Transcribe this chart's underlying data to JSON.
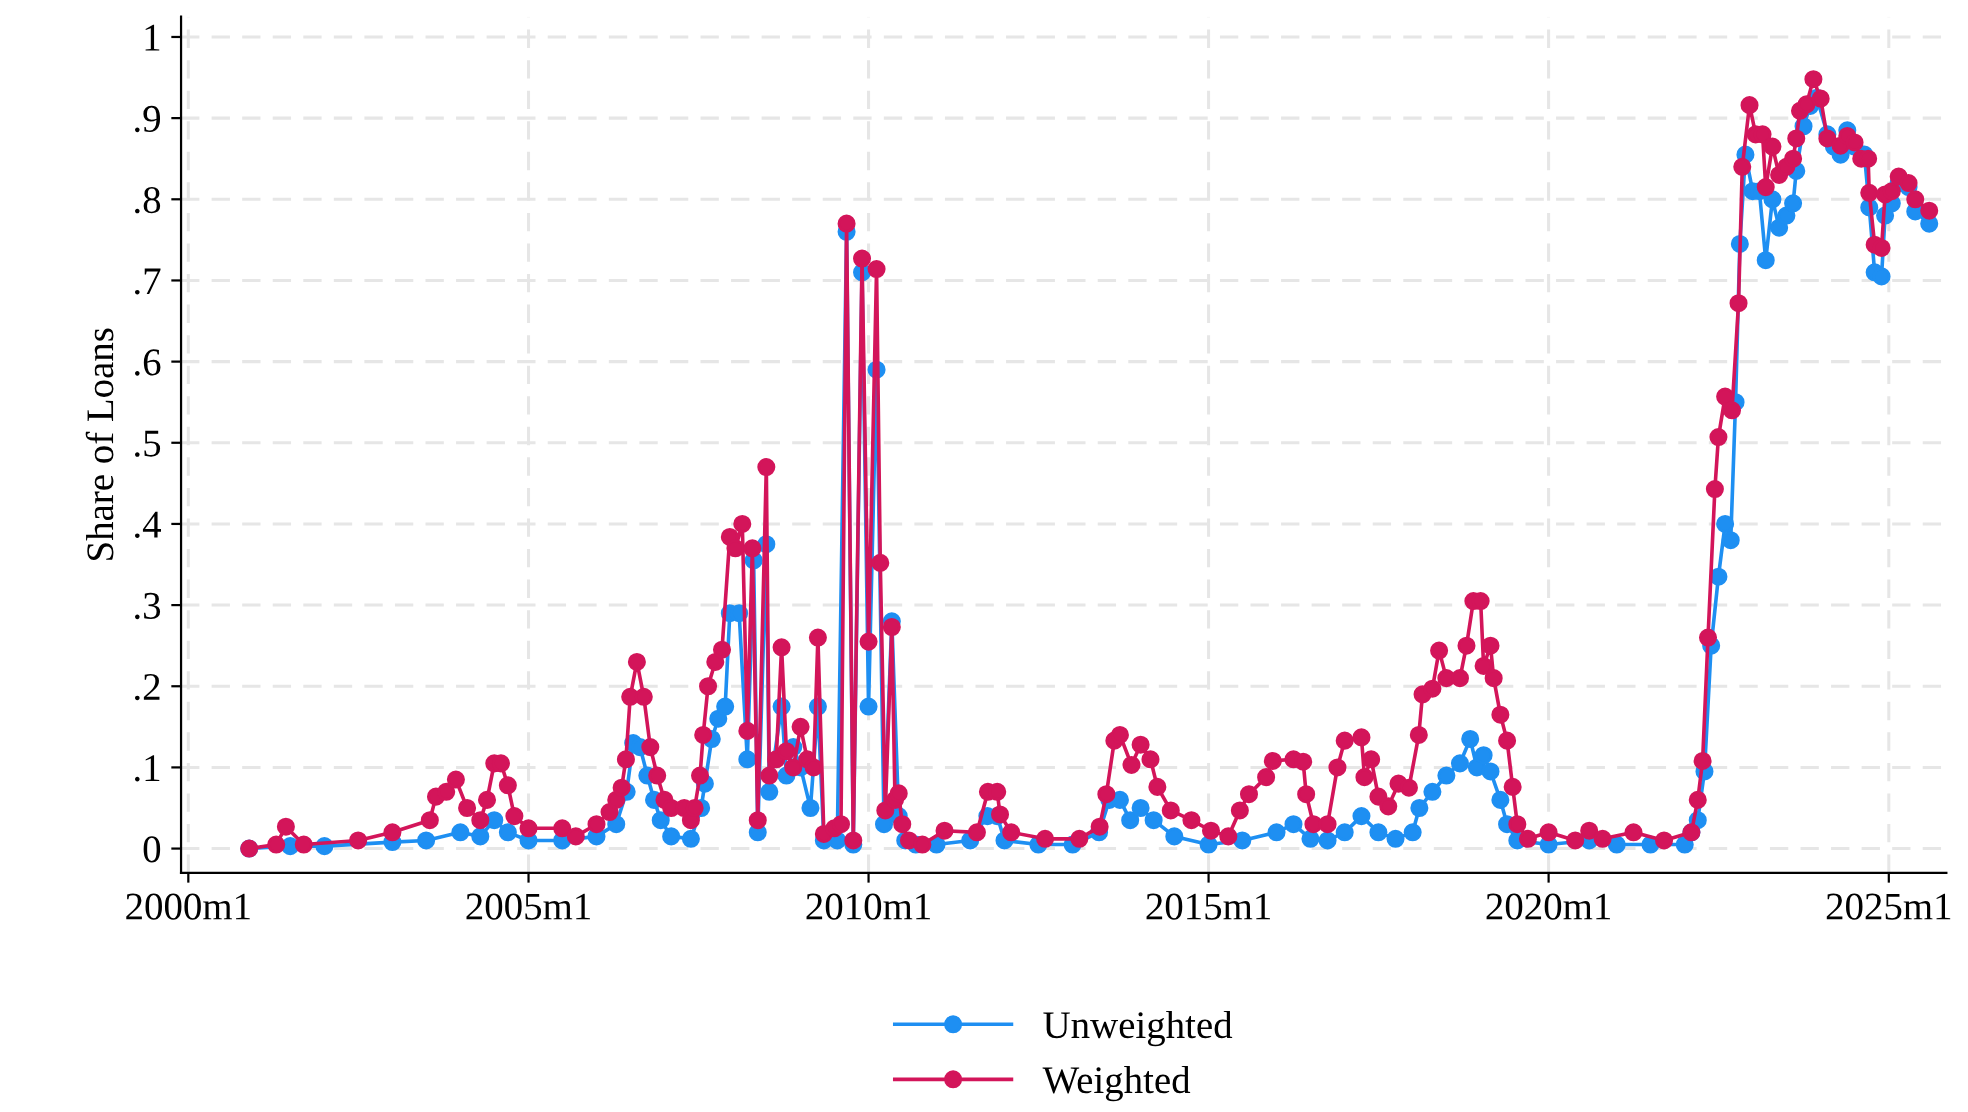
{
  "chart_data": {
    "type": "line",
    "ylabel": "Share of Loans",
    "xlim": [
      "1999-11-23",
      "2025-11-06"
    ],
    "ylim": [
      -0.03,
      1.025
    ],
    "xticks": [
      {
        "value": "2000-01",
        "label": "2000m1"
      },
      {
        "value": "2005-01",
        "label": "2005m1"
      },
      {
        "value": "2010-01",
        "label": "2010m1"
      },
      {
        "value": "2015-01",
        "label": "2015m1"
      },
      {
        "value": "2020-01",
        "label": "2020m1"
      },
      {
        "value": "2025-01",
        "label": "2025m1"
      }
    ],
    "yticks": [
      0,
      {
        "value": 0.1,
        "label": ".1"
      },
      {
        "value": 0.2,
        "label": ".2"
      },
      {
        "value": 0.3,
        "label": ".3"
      },
      {
        "value": 0.4,
        "label": ".4"
      },
      {
        "value": 0.5,
        "label": ".5"
      },
      {
        "value": 0.6,
        "label": ".6"
      },
      {
        "value": 0.7,
        "label": ".7"
      },
      {
        "value": 0.8,
        "label": ".8"
      },
      {
        "value": 0.9,
        "label": ".9"
      },
      1
    ],
    "grid": true,
    "legend": "bottom",
    "marker": "circle",
    "line_style": "solid",
    "series": [
      {
        "name": "Unweighted",
        "color": "#1e8ff2",
        "x": [
          "2000-11-23",
          "2001-07-01",
          "2002-01-01",
          "2003-01-01",
          "2003-07-01",
          "2004-01-01",
          "2004-04-17",
          "2004-07-01",
          "2004-09-12",
          "2005-01-01",
          "2005-07-01",
          "2006-01-01",
          "2006-04-17",
          "2006-06-12",
          "2006-07-17",
          "2006-08-23",
          "2006-10-01",
          "2006-11-06",
          "2006-12-12",
          "2007-02-06",
          "2007-05-23",
          "2007-07-17",
          "2007-08-06",
          "2007-09-12",
          "2007-10-17",
          "2007-11-23",
          "2007-12-18",
          "2008-02-06",
          "2008-03-21",
          "2008-04-24",
          "2008-05-16",
          "2008-07-01",
          "2008-07-17",
          "2008-09-21",
          "2008-10-17",
          "2008-11-23",
          "2009-01-01",
          "2009-02-23",
          "2009-04-04",
          "2009-05-06",
          "2009-07-17",
          "2009-09-05",
          "2009-10-11",
          "2009-11-27",
          "2010-01-01",
          "2010-02-13",
          "2010-03-25",
          "2010-05-06",
          "2010-06-12",
          "2010-07-17",
          "2010-09-12",
          "2011-01-01",
          "2011-07-01",
          "2011-10-01",
          "2011-11-23",
          "2012-01-01",
          "2012-07-01",
          "2013-01-01",
          "2013-05-23",
          "2013-07-17",
          "2013-09-12",
          "2013-11-06",
          "2014-01-01",
          "2014-03-12",
          "2014-07-01",
          "2015-01-01",
          "2015-07-01",
          "2016-01-01",
          "2016-04-01",
          "2016-07-01",
          "2016-10-01",
          "2017-01-01",
          "2017-04-01",
          "2017-07-01",
          "2017-10-01",
          "2018-01-01",
          "2018-02-06",
          "2018-04-17",
          "2018-07-01",
          "2018-09-12",
          "2018-11-06",
          "2018-12-12",
          "2019-01-17",
          "2019-02-23",
          "2019-04-17",
          "2019-05-23",
          "2019-07-17",
          "2020-01-01",
          "2020-08-06",
          "2021-01-01",
          "2021-07-01",
          "2022-01-01",
          "2022-02-06",
          "2022-03-12",
          "2022-04-17",
          "2022-05-23",
          "2022-07-01",
          "2022-08-06",
          "2022-09-05",
          "2022-10-01",
          "2022-10-24",
          "2022-11-23",
          "2023-01-01",
          "2023-02-06",
          "2023-03-12",
          "2023-04-17",
          "2023-05-23",
          "2023-07-01",
          "2023-08-06",
          "2023-08-23",
          "2023-10-01",
          "2023-11-06",
          "2023-12-12",
          "2024-02-06",
          "2024-03-12",
          "2024-04-17",
          "2024-05-23",
          "2024-07-01",
          "2024-08-23",
          "2024-09-18",
          "2024-10-17",
          "2024-11-23",
          "2024-12-12",
          "2025-01-17",
          "2025-02-23",
          "2025-04-17",
          "2025-05-23",
          "2025-08-06"
        ],
        "values": [
          0.0,
          0.003,
          0.003,
          0.008,
          0.01,
          0.02,
          0.015,
          0.035,
          0.02,
          0.01,
          0.01,
          0.015,
          0.03,
          0.07,
          0.13,
          0.125,
          0.09,
          0.06,
          0.035,
          0.015,
          0.012,
          0.05,
          0.08,
          0.135,
          0.16,
          0.175,
          0.29,
          0.29,
          0.11,
          0.355,
          0.02,
          0.375,
          0.07,
          0.175,
          0.09,
          0.125,
          0.1,
          0.05,
          0.175,
          0.01,
          0.01,
          0.76,
          0.005,
          0.71,
          0.175,
          0.59,
          0.03,
          0.28,
          0.04,
          0.01,
          0.005,
          0.005,
          0.01,
          0.04,
          0.04,
          0.01,
          0.005,
          0.005,
          0.02,
          0.06,
          0.06,
          0.035,
          0.05,
          0.035,
          0.015,
          0.005,
          0.01,
          0.02,
          0.03,
          0.012,
          0.01,
          0.02,
          0.04,
          0.02,
          0.012,
          0.02,
          0.05,
          0.07,
          0.09,
          0.105,
          0.135,
          0.1,
          0.115,
          0.095,
          0.06,
          0.03,
          0.01,
          0.005,
          0.01,
          0.005,
          0.005,
          0.005,
          0.02,
          0.035,
          0.095,
          0.25,
          0.335,
          0.4,
          0.38,
          0.55,
          0.745,
          0.855,
          0.81,
          0.81,
          0.725,
          0.8,
          0.765,
          0.78,
          0.795,
          0.835,
          0.89,
          0.915,
          0.925,
          0.88,
          0.865,
          0.855,
          0.885,
          0.865,
          0.855,
          0.79,
          0.71,
          0.705,
          0.78,
          0.795,
          0.82,
          0.815,
          0.785,
          0.77
        ]
      },
      {
        "name": "Weighted",
        "color": "#d3155a",
        "x": [
          "2000-11-23",
          "2001-04-17",
          "2001-06-08",
          "2001-09-12",
          "2002-07-01",
          "2003-01-01",
          "2003-07-21",
          "2003-08-23",
          "2003-10-17",
          "2003-12-08",
          "2004-02-06",
          "2004-04-17",
          "2004-05-23",
          "2004-07-01",
          "2004-08-06",
          "2004-09-12",
          "2004-10-17",
          "2005-01-01",
          "2005-07-01",
          "2005-09-12",
          "2006-01-01",
          "2006-03-12",
          "2006-04-17",
          "2006-05-16",
          "2006-06-08",
          "2006-07-01",
          "2006-08-06",
          "2006-09-12",
          "2006-10-17",
          "2006-11-23",
          "2007-01-01",
          "2007-02-06",
          "2007-04-17",
          "2007-05-23",
          "2007-06-12",
          "2007-07-11",
          "2007-07-28",
          "2007-08-23",
          "2007-10-01",
          "2007-11-06",
          "2007-12-18",
          "2008-01-17",
          "2008-02-23",
          "2008-03-21",
          "2008-04-17",
          "2008-05-16",
          "2008-07-01",
          "2008-07-17",
          "2008-08-23",
          "2008-09-21",
          "2008-10-17",
          "2008-11-23",
          "2009-01-01",
          "2009-02-06",
          "2009-03-12",
          "2009-04-04",
          "2009-05-06",
          "2009-07-01",
          "2009-08-06",
          "2009-09-05",
          "2009-10-11",
          "2009-11-27",
          "2010-01-01",
          "2010-02-13",
          "2010-03-05",
          "2010-04-01",
          "2010-05-06",
          "2010-05-23",
          "2010-06-12",
          "2010-07-01",
          "2010-08-06",
          "2010-10-17",
          "2011-02-13",
          "2011-08-06",
          "2011-10-04",
          "2011-11-23",
          "2011-12-08",
          "2012-02-06",
          "2012-08-06",
          "2013-02-06",
          "2013-05-26",
          "2013-07-01",
          "2013-08-13",
          "2013-09-12",
          "2013-11-13",
          "2014-01-01",
          "2014-02-23",
          "2014-04-01",
          "2014-06-12",
          "2014-10-01",
          "2015-01-14",
          "2015-04-17",
          "2015-06-18",
          "2015-08-06",
          "2015-11-06",
          "2015-12-12",
          "2016-04-01",
          "2016-05-23",
          "2016-06-08",
          "2016-07-17",
          "2016-10-01",
          "2016-11-23",
          "2017-01-01",
          "2017-04-01",
          "2017-04-17",
          "2017-05-23",
          "2017-07-01",
          "2017-08-23",
          "2017-10-17",
          "2017-12-12",
          "2018-02-03",
          "2018-02-23",
          "2018-04-17",
          "2018-05-23",
          "2018-07-01",
          "2018-09-12",
          "2018-10-17",
          "2018-11-23",
          "2019-01-01",
          "2019-01-17",
          "2019-02-23",
          "2019-03-12",
          "2019-04-17",
          "2019-05-23",
          "2019-06-22",
          "2019-07-17",
          "2019-09-12",
          "2020-01-01",
          "2020-05-23",
          "2020-08-06",
          "2020-10-17",
          "2021-04-01",
          "2021-09-12",
          "2022-02-06",
          "2022-03-12",
          "2022-04-07",
          "2022-05-06",
          "2022-06-12",
          "2022-07-01",
          "2022-08-06",
          "2022-09-12",
          "2022-10-17",
          "2022-11-06",
          "2022-12-15",
          "2023-01-17",
          "2023-02-23",
          "2023-03-12",
          "2023-04-17",
          "2023-05-23",
          "2023-07-01",
          "2023-08-06",
          "2023-08-23",
          "2023-09-12",
          "2023-10-17",
          "2023-11-23",
          "2024-01-01",
          "2024-02-06",
          "2024-04-17",
          "2024-05-23",
          "2024-07-01",
          "2024-08-06",
          "2024-09-12",
          "2024-09-18",
          "2024-10-17",
          "2024-11-23",
          "2024-12-12",
          "2025-01-17",
          "2025-02-23",
          "2025-04-17",
          "2025-05-23",
          "2025-08-06"
        ],
        "values": [
          0.0,
          0.005,
          0.027,
          0.005,
          0.01,
          0.02,
          0.035,
          0.064,
          0.07,
          0.085,
          0.05,
          0.035,
          0.06,
          0.105,
          0.105,
          0.078,
          0.04,
          0.025,
          0.025,
          0.015,
          0.03,
          0.045,
          0.06,
          0.075,
          0.11,
          0.187,
          0.23,
          0.187,
          0.125,
          0.09,
          0.06,
          0.05,
          0.05,
          0.035,
          0.05,
          0.09,
          0.14,
          0.2,
          0.23,
          0.245,
          0.384,
          0.37,
          0.4,
          0.145,
          0.37,
          0.035,
          0.47,
          0.09,
          0.11,
          0.248,
          0.12,
          0.1,
          0.15,
          0.11,
          0.1,
          0.26,
          0.018,
          0.025,
          0.03,
          0.77,
          0.01,
          0.727,
          0.255,
          0.714,
          0.352,
          0.047,
          0.273,
          0.06,
          0.068,
          0.03,
          0.01,
          0.005,
          0.022,
          0.02,
          0.07,
          0.07,
          0.042,
          0.02,
          0.012,
          0.012,
          0.027,
          0.067,
          0.133,
          0.14,
          0.103,
          0.128,
          0.11,
          0.076,
          0.047,
          0.035,
          0.022,
          0.015,
          0.047,
          0.067,
          0.088,
          0.108,
          0.11,
          0.107,
          0.067,
          0.03,
          0.03,
          0.1,
          0.133,
          0.137,
          0.088,
          0.11,
          0.064,
          0.052,
          0.08,
          0.075,
          0.14,
          0.19,
          0.197,
          0.244,
          0.21,
          0.21,
          0.25,
          0.305,
          0.305,
          0.225,
          0.25,
          0.21,
          0.165,
          0.133,
          0.076,
          0.03,
          0.012,
          0.02,
          0.01,
          0.022,
          0.012,
          0.02,
          0.01,
          0.02,
          0.06,
          0.108,
          0.26,
          0.443,
          0.507,
          0.557,
          0.54,
          0.672,
          0.84,
          0.916,
          0.88,
          0.88,
          0.815,
          0.865,
          0.83,
          0.84,
          0.85,
          0.875,
          0.909,
          0.917,
          0.948,
          0.924,
          0.875,
          0.866,
          0.878,
          0.87,
          0.85,
          0.85,
          0.808,
          0.744,
          0.74,
          0.806,
          0.81,
          0.828,
          0.82,
          0.8,
          0.786
        ]
      }
    ]
  }
}
